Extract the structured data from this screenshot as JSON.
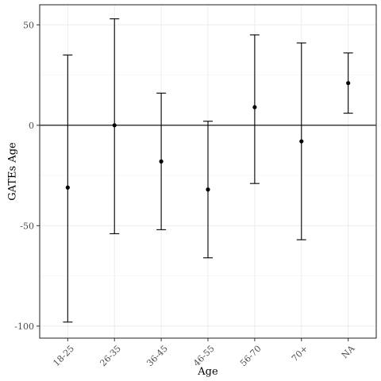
{
  "chart_data": {
    "type": "errorbar",
    "xlabel": "Age",
    "ylabel": "GATEs Age",
    "categories": [
      "18-25",
      "26-35",
      "36-45",
      "46-55",
      "56-70",
      "70+",
      "NA"
    ],
    "estimate": [
      -31,
      0,
      -18,
      -32,
      9,
      -8,
      21
    ],
    "lower": [
      -98,
      -54,
      -52,
      -66,
      -29,
      -57,
      6
    ],
    "upper": [
      35,
      53,
      16,
      2,
      45,
      41,
      36
    ],
    "ylim": [
      -106,
      60
    ],
    "yticks": [
      -100,
      -50,
      0,
      50
    ],
    "yticklabels": [
      "-100",
      "-50",
      "0",
      "50"
    ],
    "hline": 0,
    "grid": true,
    "colors": {
      "panel_border": "#333333",
      "grid_major": "#ebebeb",
      "grid_minor": "#f5f5f5",
      "marks": "#000000"
    }
  }
}
